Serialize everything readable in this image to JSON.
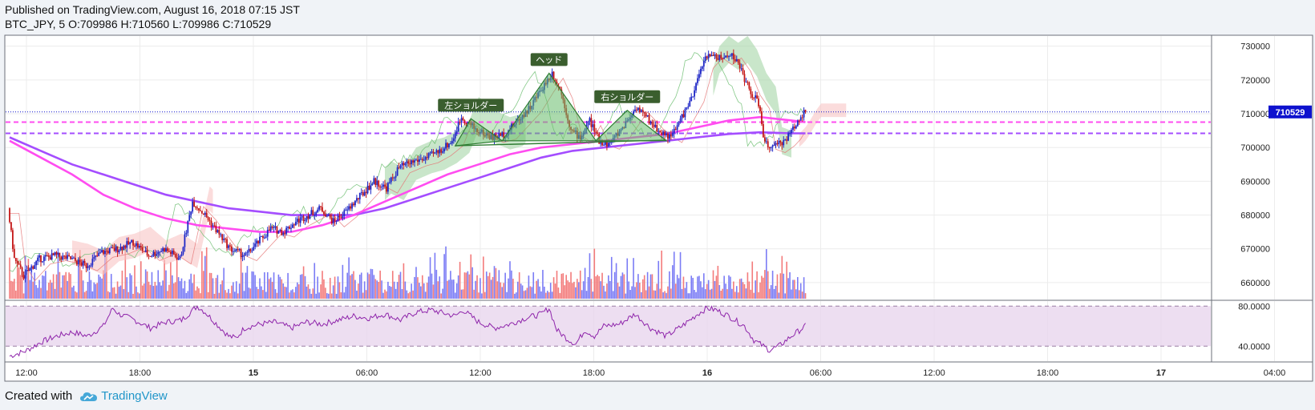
{
  "header": {
    "published": "Published on TradingView.com, August 16, 2018 07:15 JST",
    "ohlc": "BTC_JPY, 5 O:709986 H:710560 L:709986 C:710529"
  },
  "footer": {
    "created_with": "Created with",
    "brand": "TradingView"
  },
  "colors": {
    "up": "#1e27c6",
    "down": "#c41717",
    "ma_fast": "#ff4df0",
    "ma_slow": "#a44dff",
    "cloud_green": "#a5d6a7",
    "cloud_red": "#f8c4c4",
    "pattern": "#2e7d32",
    "price_tag": "#0e12ce",
    "rsi_band": "#e9d6ee"
  },
  "chart_data": {
    "type": "candlestick",
    "symbol": "BTC_JPY",
    "interval": "5",
    "price_axis": {
      "ticks": [
        730000,
        720000,
        710000,
        700000,
        690000,
        680000,
        670000,
        660000
      ],
      "range": [
        655000,
        733000
      ]
    },
    "time_axis": {
      "ticks": [
        {
          "label": "12:00",
          "bold": false
        },
        {
          "label": "18:00",
          "bold": false
        },
        {
          "label": "15",
          "bold": true
        },
        {
          "label": "06:00",
          "bold": false
        },
        {
          "label": "12:00",
          "bold": false
        },
        {
          "label": "18:00",
          "bold": false
        },
        {
          "label": "16",
          "bold": true
        },
        {
          "label": "06:00",
          "bold": false
        },
        {
          "label": "12:00",
          "bold": false
        },
        {
          "label": "18:00",
          "bold": false
        },
        {
          "label": "17",
          "bold": true
        },
        {
          "label": "04:00",
          "bold": false
        }
      ]
    },
    "last_price": {
      "value": 710529,
      "label": "710529"
    },
    "levels": [
      {
        "value": 707500,
        "color": "#ff4df0",
        "style": "dashed"
      },
      {
        "value": 704200,
        "color": "#a44dff",
        "style": "dashed"
      }
    ],
    "price_path": [
      [
        0,
        682000
      ],
      [
        4,
        667000
      ],
      [
        10,
        662000
      ],
      [
        20,
        667000
      ],
      [
        30,
        668000
      ],
      [
        40,
        667000
      ],
      [
        50,
        665000
      ],
      [
        60,
        669000
      ],
      [
        70,
        670000
      ],
      [
        80,
        672000
      ],
      [
        90,
        668000
      ],
      [
        100,
        670000
      ],
      [
        110,
        667000
      ],
      [
        118,
        684000
      ],
      [
        126,
        680000
      ],
      [
        134,
        675000
      ],
      [
        142,
        670000
      ],
      [
        152,
        668000
      ],
      [
        160,
        672000
      ],
      [
        168,
        676000
      ],
      [
        176,
        675000
      ],
      [
        184,
        678000
      ],
      [
        192,
        680000
      ],
      [
        200,
        682000
      ],
      [
        208,
        678000
      ],
      [
        216,
        681000
      ],
      [
        226,
        686000
      ],
      [
        234,
        690000
      ],
      [
        242,
        688000
      ],
      [
        250,
        694000
      ],
      [
        260,
        696000
      ],
      [
        268,
        697000
      ],
      [
        276,
        699000
      ],
      [
        284,
        702000
      ],
      [
        290,
        709000
      ],
      [
        300,
        705000
      ],
      [
        310,
        703000
      ],
      [
        318,
        704000
      ],
      [
        326,
        708000
      ],
      [
        334,
        712000
      ],
      [
        342,
        718000
      ],
      [
        348,
        722000
      ],
      [
        354,
        716000
      ],
      [
        360,
        705000
      ],
      [
        366,
        703000
      ],
      [
        372,
        708000
      ],
      [
        378,
        702000
      ],
      [
        384,
        701000
      ],
      [
        390,
        704000
      ],
      [
        396,
        708000
      ],
      [
        402,
        712000
      ],
      [
        410,
        708000
      ],
      [
        416,
        705000
      ],
      [
        424,
        703000
      ],
      [
        432,
        710000
      ],
      [
        438,
        715000
      ],
      [
        444,
        725000
      ],
      [
        450,
        728000
      ],
      [
        456,
        726000
      ],
      [
        462,
        728000
      ],
      [
        468,
        724000
      ],
      [
        474,
        717000
      ],
      [
        480,
        713000
      ],
      [
        484,
        701000
      ],
      [
        490,
        700000
      ],
      [
        496,
        702000
      ],
      [
        500,
        704000
      ],
      [
        505,
        708000
      ],
      [
        509,
        710529
      ]
    ],
    "ma_fast": [
      [
        0,
        702000
      ],
      [
        20,
        697000
      ],
      [
        40,
        692000
      ],
      [
        60,
        686000
      ],
      [
        80,
        682000
      ],
      [
        100,
        679000
      ],
      [
        120,
        677000
      ],
      [
        140,
        676000
      ],
      [
        160,
        675000
      ],
      [
        180,
        675000
      ],
      [
        200,
        677000
      ],
      [
        220,
        680000
      ],
      [
        240,
        684000
      ],
      [
        260,
        688000
      ],
      [
        280,
        692000
      ],
      [
        300,
        695000
      ],
      [
        320,
        698000
      ],
      [
        340,
        700000
      ],
      [
        360,
        701000
      ],
      [
        380,
        702000
      ],
      [
        400,
        703000
      ],
      [
        420,
        704000
      ],
      [
        440,
        706000
      ],
      [
        460,
        708000
      ],
      [
        480,
        709000
      ],
      [
        500,
        708000
      ],
      [
        509,
        707500
      ]
    ],
    "ma_slow": [
      [
        0,
        703000
      ],
      [
        20,
        699000
      ],
      [
        40,
        695000
      ],
      [
        60,
        692000
      ],
      [
        80,
        689000
      ],
      [
        100,
        686000
      ],
      [
        120,
        684000
      ],
      [
        140,
        682000
      ],
      [
        160,
        681000
      ],
      [
        180,
        680000
      ],
      [
        200,
        680000
      ],
      [
        220,
        680000
      ],
      [
        240,
        682000
      ],
      [
        260,
        685000
      ],
      [
        280,
        688000
      ],
      [
        300,
        691000
      ],
      [
        320,
        694000
      ],
      [
        340,
        697000
      ],
      [
        360,
        699000
      ],
      [
        380,
        700000
      ],
      [
        400,
        701000
      ],
      [
        420,
        702000
      ],
      [
        440,
        703000
      ],
      [
        460,
        704000
      ],
      [
        480,
        704500
      ],
      [
        500,
        704200
      ],
      [
        509,
        704200
      ]
    ],
    "patterns": {
      "left_shoulder": {
        "label": "左ショルダー",
        "triangle": [
          [
            285,
            700500
          ],
          [
            295,
            708500
          ],
          [
            315,
            702000
          ]
        ]
      },
      "head": {
        "label": "ヘッド",
        "triangle": [
          [
            315,
            702000
          ],
          [
            345,
            722000
          ],
          [
            375,
            702000
          ]
        ]
      },
      "right_shoulder": {
        "label": "右ショルダー",
        "triangle": [
          [
            375,
            702000
          ],
          [
            395,
            711000
          ],
          [
            420,
            702000
          ]
        ]
      }
    },
    "volume_range": [
      0,
      1
    ],
    "rsi": {
      "ticks": [
        {
          "value": 80,
          "label": "80.0000"
        },
        {
          "value": 40,
          "label": "40.0000"
        }
      ],
      "band": [
        40,
        80
      ],
      "range": [
        25,
        85
      ],
      "points": [
        [
          0,
          30
        ],
        [
          10,
          35
        ],
        [
          20,
          44
        ],
        [
          30,
          50
        ],
        [
          40,
          54
        ],
        [
          50,
          50
        ],
        [
          60,
          60
        ],
        [
          66,
          78
        ],
        [
          70,
          72
        ],
        [
          80,
          66
        ],
        [
          90,
          58
        ],
        [
          100,
          64
        ],
        [
          110,
          66
        ],
        [
          120,
          80
        ],
        [
          125,
          74
        ],
        [
          130,
          66
        ],
        [
          135,
          58
        ],
        [
          140,
          50
        ],
        [
          145,
          48
        ],
        [
          150,
          58
        ],
        [
          160,
          62
        ],
        [
          170,
          64
        ],
        [
          180,
          58
        ],
        [
          190,
          64
        ],
        [
          200,
          62
        ],
        [
          210,
          66
        ],
        [
          220,
          70
        ],
        [
          230,
          68
        ],
        [
          240,
          72
        ],
        [
          250,
          66
        ],
        [
          260,
          74
        ],
        [
          270,
          76
        ],
        [
          280,
          72
        ],
        [
          285,
          70
        ],
        [
          290,
          76
        ],
        [
          300,
          64
        ],
        [
          310,
          58
        ],
        [
          320,
          62
        ],
        [
          330,
          68
        ],
        [
          340,
          72
        ],
        [
          345,
          78
        ],
        [
          350,
          56
        ],
        [
          356,
          48
        ],
        [
          362,
          42
        ],
        [
          368,
          56
        ],
        [
          374,
          50
        ],
        [
          380,
          60
        ],
        [
          390,
          62
        ],
        [
          400,
          72
        ],
        [
          410,
          58
        ],
        [
          420,
          50
        ],
        [
          430,
          60
        ],
        [
          440,
          72
        ],
        [
          446,
          78
        ],
        [
          452,
          76
        ],
        [
          460,
          70
        ],
        [
          470,
          60
        ],
        [
          476,
          46
        ],
        [
          480,
          42
        ],
        [
          486,
          36
        ],
        [
          492,
          40
        ],
        [
          500,
          50
        ],
        [
          509,
          60
        ]
      ]
    }
  }
}
